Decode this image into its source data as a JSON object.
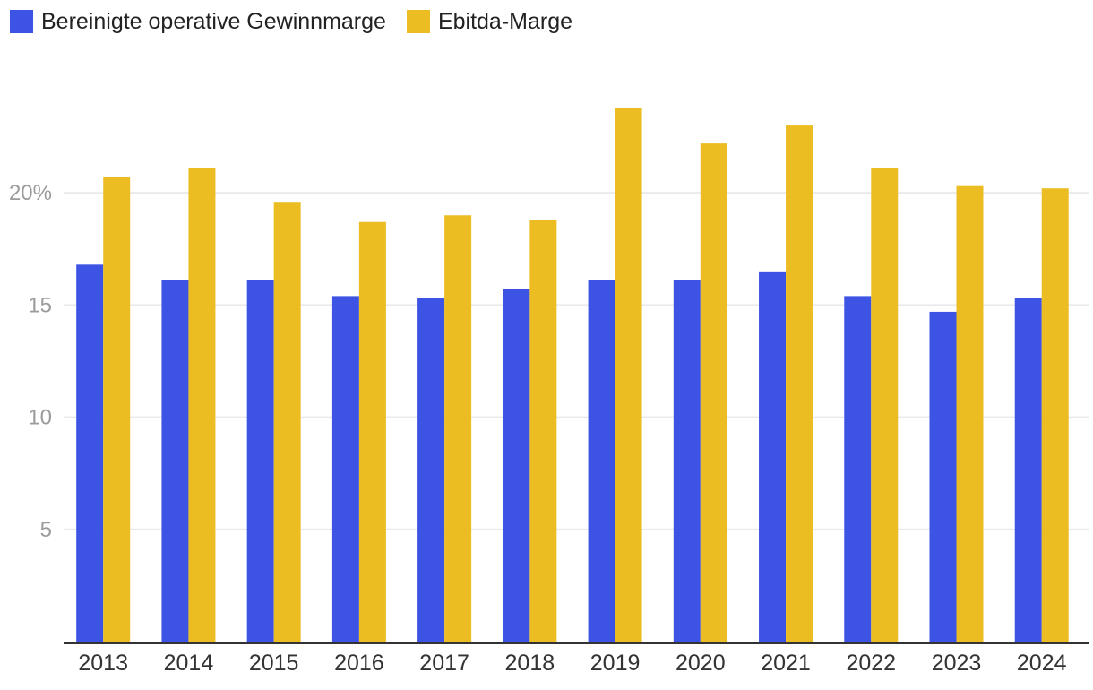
{
  "chart_data": {
    "type": "bar",
    "title": "",
    "xlabel": "",
    "ylabel": "",
    "categories": [
      "2013",
      "2014",
      "2015",
      "2016",
      "2017",
      "2018",
      "2019",
      "2020",
      "2021",
      "2022",
      "2023",
      "2024"
    ],
    "series": [
      {
        "name": "Bereinigte operative Gewinnmarge",
        "slug": "bereinigte-operative-gewinnmarge",
        "color": "#3c53e4",
        "values": [
          16.8,
          16.1,
          16.1,
          15.4,
          15.3,
          15.7,
          16.1,
          16.1,
          16.5,
          15.4,
          14.7,
          15.3
        ]
      },
      {
        "name": "Ebitda-Marge",
        "slug": "ebitda-marge",
        "color": "#ecbd23",
        "values": [
          20.7,
          21.1,
          19.6,
          18.7,
          19.0,
          18.8,
          23.8,
          22.2,
          23.0,
          21.1,
          20.3,
          20.2
        ]
      }
    ],
    "ylim": [
      0,
      25
    ],
    "yticks": [
      {
        "value": 5,
        "label": "5"
      },
      {
        "value": 10,
        "label": "10"
      },
      {
        "value": 15,
        "label": "15"
      },
      {
        "value": 20,
        "label": "20%"
      }
    ],
    "grid": true,
    "legend_position": "top-left",
    "colors": {
      "grid_line": "#e9e9e9",
      "ytick_label": "#9b9b9b",
      "category_label": "#333333",
      "baseline_axis": "#333333",
      "legend_text": "#222222",
      "background": "#ffffff"
    }
  }
}
